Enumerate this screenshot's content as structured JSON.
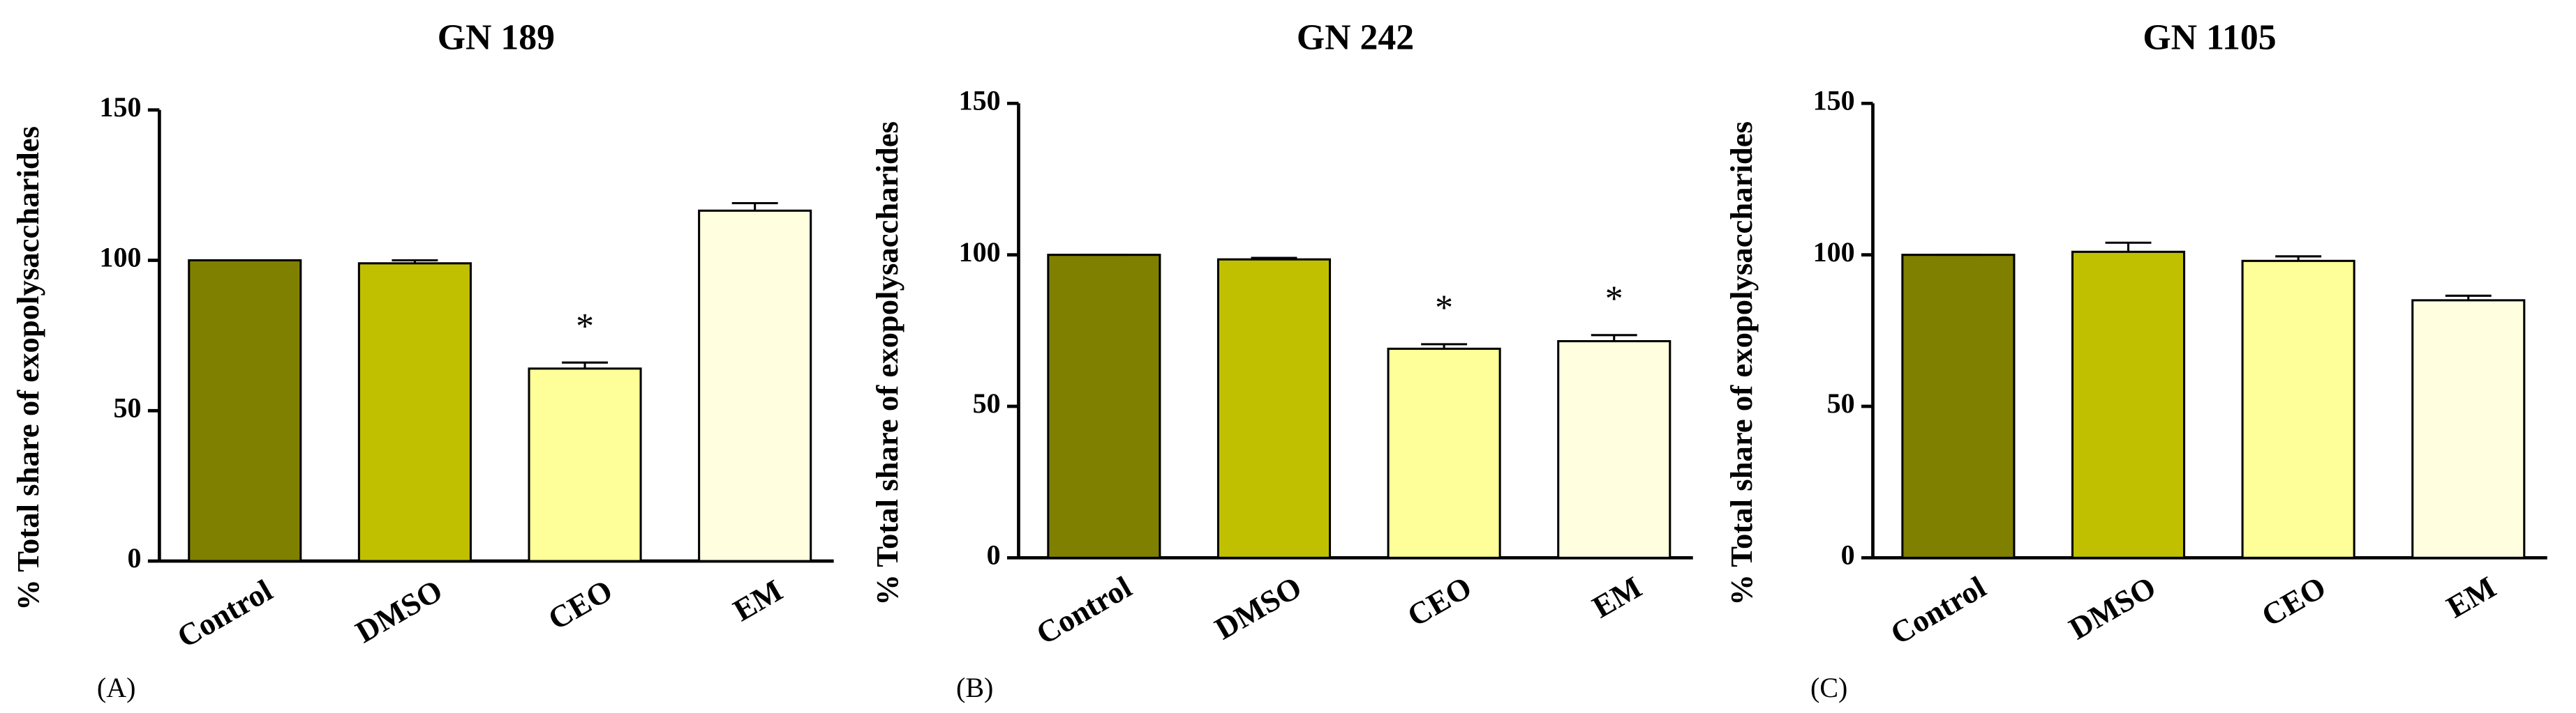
{
  "chart_data": [
    {
      "type": "bar",
      "title": "GN 189",
      "ylabel": "% Total share of exopolysaccharides",
      "panel": "(A)",
      "categories": [
        "Control",
        "DMSO",
        "CEO",
        "EM"
      ],
      "values": [
        100,
        99,
        64,
        116.5
      ],
      "errors": [
        0,
        1,
        2,
        2.5
      ],
      "colors": [
        "#808000",
        "#c0c000",
        "#ffff99",
        "#ffffe0"
      ],
      "annotations": [
        null,
        null,
        "*",
        null
      ],
      "ylim": [
        0,
        150
      ],
      "yticks": [
        0,
        50,
        100,
        150
      ]
    },
    {
      "type": "bar",
      "title": "GN 242",
      "ylabel": "% Total share of exopolysaccharides",
      "panel": "(B)",
      "categories": [
        "Control",
        "DMSO",
        "CEO",
        "EM"
      ],
      "values": [
        100,
        98.5,
        69,
        71.5
      ],
      "errors": [
        0,
        0.5,
        1.5,
        2
      ],
      "colors": [
        "#808000",
        "#c0c000",
        "#ffff99",
        "#ffffe0"
      ],
      "annotations": [
        null,
        null,
        "*",
        "*"
      ],
      "ylim": [
        0,
        150
      ],
      "yticks": [
        0,
        50,
        100,
        150
      ]
    },
    {
      "type": "bar",
      "title": "GN 1105",
      "ylabel": "% Total share of exopolysaccharides",
      "panel": "(C)",
      "categories": [
        "Control",
        "DMSO",
        "CEO",
        "EM"
      ],
      "values": [
        100,
        101,
        98,
        85
      ],
      "errors": [
        0,
        3,
        1.5,
        1.5
      ],
      "colors": [
        "#808000",
        "#c0c000",
        "#ffff99",
        "#ffffe0"
      ],
      "annotations": [
        null,
        null,
        null,
        null
      ],
      "ylim": [
        0,
        150
      ],
      "yticks": [
        0,
        50,
        100,
        150
      ]
    }
  ]
}
